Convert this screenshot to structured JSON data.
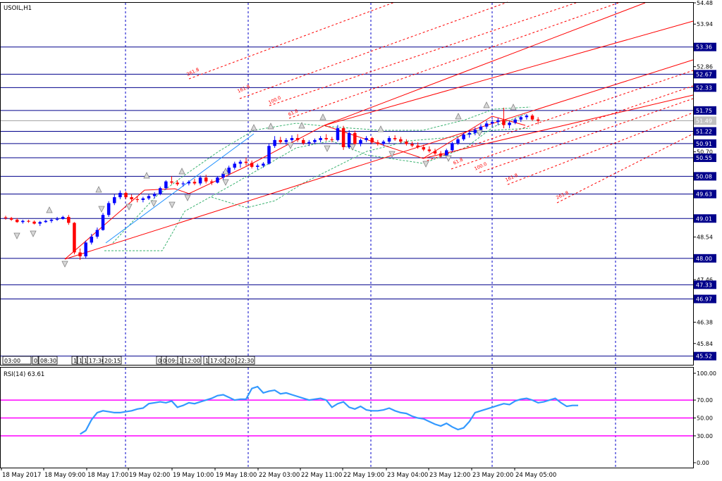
{
  "app": {
    "symbol_label": "USOIL,H1",
    "rsi_label": "RSI(14) 63.61"
  },
  "colors": {
    "background": "#ffffff",
    "frame": "#000000",
    "grid_vertical": "#0000c8",
    "level_line": "#00008b",
    "bull_candle": "#0000ff",
    "bear_candle": "#ff0000",
    "neutral_candle": "#00a000",
    "trend_red": "#ff0000",
    "trend_blue": "#1e90ff",
    "envelope_green": "#3cb371",
    "fractal": "#808080",
    "rsi_line": "#3399ff",
    "rsi_levels": "#ff00ff",
    "price_tag_bg": "#00008b",
    "current_price_bg": "#c0c0c0"
  },
  "time_labels": [
    "18 May 2017",
    "18 May 09:00",
    "18 May 17:00",
    "19 May 02:00",
    "19 May 10:00",
    "19 May 18:00",
    "22 May 03:00",
    "22 May 11:00",
    "22 May 19:00",
    "23 May 04:00",
    "23 May 12:00",
    "23 May 20:00",
    "24 May 05:00"
  ],
  "price_axis": {
    "ticks": [
      "54.48",
      "53.94",
      "52.86",
      "52.33",
      "51.75",
      "50.70",
      "48.54",
      "47.46",
      "46.38",
      "45.84"
    ],
    "level_tags": [
      "53.36",
      "52.67",
      "52.33",
      "51.75",
      "51.22",
      "50.91",
      "50.55",
      "50.08",
      "49.63",
      "49.01",
      "48.00",
      "47.33",
      "46.97",
      "45.52"
    ],
    "current_price": "51.49"
  },
  "rsi_axis": {
    "ticks": [
      "100.00",
      "70.00",
      "50.00",
      "30.00",
      "0.00"
    ]
  },
  "fib_labels": {
    "upper": [
      "261.8",
      "161.8",
      "100.0",
      "61.8"
    ],
    "lower": [
      "61.8",
      "100.0",
      "161.8",
      "261.8"
    ]
  },
  "session_markers": {
    "group1": [
      "03:00",
      "0",
      "08:30"
    ],
    "group2": [
      "1",
      "1",
      "1",
      "17:30",
      "20:15"
    ],
    "group3": [
      "0",
      "0",
      "09:",
      "1",
      "12:00"
    ],
    "group4": [
      "1",
      "17:00",
      "20:",
      "22:30"
    ]
  },
  "chart_data": {
    "type": "candlestick",
    "symbol": "USOIL",
    "timeframe": "H1",
    "price_range": [
      45.3,
      54.48
    ],
    "rsi_range": [
      0,
      100
    ],
    "rsi_period": 14,
    "rsi_last": 63.61,
    "rsi_levels": [
      70,
      50,
      30
    ],
    "horizontal_levels": [
      53.36,
      52.67,
      52.33,
      51.75,
      51.49,
      51.22,
      50.91,
      50.55,
      50.08,
      49.63,
      49.01,
      48.0,
      47.33,
      46.97,
      45.52
    ],
    "candles_ohlc": [
      [
        49.04,
        49.08,
        48.98,
        49.02
      ],
      [
        49.02,
        49.05,
        48.95,
        48.98
      ],
      [
        48.98,
        49.02,
        48.9,
        48.92
      ],
      [
        48.92,
        48.98,
        48.88,
        48.95
      ],
      [
        48.95,
        48.98,
        48.9,
        48.93
      ],
      [
        48.93,
        48.96,
        48.86,
        48.88
      ],
      [
        48.88,
        48.95,
        48.82,
        48.92
      ],
      [
        48.92,
        48.98,
        48.9,
        48.95
      ],
      [
        48.95,
        49.02,
        48.9,
        48.98
      ],
      [
        48.98,
        49.05,
        48.95,
        49.0
      ],
      [
        49.0,
        49.08,
        48.98,
        49.05
      ],
      [
        49.05,
        49.1,
        48.85,
        48.9
      ],
      [
        48.9,
        48.92,
        48.1,
        48.15
      ],
      [
        48.15,
        48.25,
        47.96,
        48.05
      ],
      [
        48.05,
        48.45,
        48.0,
        48.4
      ],
      [
        48.4,
        48.62,
        48.35,
        48.55
      ],
      [
        48.55,
        48.78,
        48.5,
        48.72
      ],
      [
        48.72,
        49.15,
        48.7,
        49.1
      ],
      [
        49.1,
        49.45,
        49.05,
        49.4
      ],
      [
        49.4,
        49.62,
        49.35,
        49.55
      ],
      [
        49.55,
        49.72,
        49.5,
        49.66
      ],
      [
        49.66,
        49.7,
        49.5,
        49.55
      ],
      [
        49.55,
        49.62,
        49.45,
        49.5
      ],
      [
        49.5,
        49.58,
        49.42,
        49.48
      ],
      [
        49.48,
        49.56,
        49.42,
        49.52
      ],
      [
        49.52,
        49.62,
        49.48,
        49.58
      ],
      [
        49.58,
        49.68,
        49.52,
        49.63
      ],
      [
        49.63,
        49.82,
        49.6,
        49.78
      ],
      [
        49.78,
        49.98,
        49.74,
        49.95
      ],
      [
        49.95,
        50.08,
        49.88,
        49.92
      ],
      [
        49.92,
        49.98,
        49.84,
        49.88
      ],
      [
        49.88,
        49.95,
        49.82,
        49.9
      ],
      [
        49.9,
        49.98,
        49.85,
        49.94
      ],
      [
        49.94,
        50.02,
        49.86,
        49.9
      ],
      [
        49.9,
        50.1,
        49.85,
        50.05
      ],
      [
        50.05,
        50.12,
        49.9,
        49.95
      ],
      [
        49.95,
        50.0,
        49.86,
        49.92
      ],
      [
        49.92,
        50.08,
        49.9,
        50.05
      ],
      [
        50.05,
        50.2,
        50.0,
        50.15
      ],
      [
        50.15,
        50.35,
        50.1,
        50.3
      ],
      [
        50.3,
        50.45,
        50.25,
        50.4
      ],
      [
        50.4,
        50.5,
        50.3,
        50.45
      ],
      [
        50.45,
        50.55,
        50.35,
        50.42
      ],
      [
        50.42,
        50.48,
        50.28,
        50.32
      ],
      [
        50.32,
        50.4,
        50.25,
        50.35
      ],
      [
        50.35,
        50.44,
        50.3,
        50.4
      ],
      [
        50.4,
        50.9,
        50.38,
        50.85
      ],
      [
        50.85,
        51.1,
        50.8,
        51.0
      ],
      [
        51.0,
        51.08,
        50.9,
        50.95
      ],
      [
        50.95,
        51.05,
        50.88,
        51.0
      ],
      [
        51.0,
        51.12,
        50.95,
        51.05
      ],
      [
        51.05,
        51.15,
        50.95,
        51.0
      ],
      [
        51.0,
        51.05,
        50.88,
        50.92
      ],
      [
        50.92,
        51.0,
        50.85,
        50.95
      ],
      [
        50.95,
        51.04,
        50.9,
        51.0
      ],
      [
        51.0,
        51.1,
        50.94,
        51.05
      ],
      [
        51.05,
        51.15,
        50.98,
        51.02
      ],
      [
        51.02,
        51.08,
        50.95,
        51.0
      ],
      [
        51.0,
        51.38,
        50.96,
        51.3
      ],
      [
        51.3,
        51.36,
        50.75,
        50.82
      ],
      [
        50.82,
        51.25,
        50.78,
        51.18
      ],
      [
        51.18,
        51.24,
        50.85,
        50.9
      ],
      [
        50.9,
        51.04,
        50.84,
        51.0
      ],
      [
        51.0,
        51.1,
        50.95,
        51.05
      ],
      [
        51.05,
        51.08,
        50.9,
        50.94
      ],
      [
        50.94,
        51.0,
        50.86,
        50.9
      ],
      [
        50.9,
        51.0,
        50.85,
        50.96
      ],
      [
        50.96,
        51.1,
        50.92,
        51.05
      ],
      [
        51.05,
        51.12,
        50.98,
        51.02
      ],
      [
        51.02,
        51.08,
        50.92,
        50.96
      ],
      [
        50.96,
        51.02,
        50.86,
        50.9
      ],
      [
        50.9,
        50.96,
        50.82,
        50.86
      ],
      [
        50.86,
        50.94,
        50.78,
        50.82
      ],
      [
        50.82,
        50.88,
        50.72,
        50.76
      ],
      [
        50.76,
        50.84,
        50.68,
        50.72
      ],
      [
        50.72,
        50.78,
        50.62,
        50.66
      ],
      [
        50.66,
        50.72,
        50.55,
        50.6
      ],
      [
        50.6,
        50.78,
        50.56,
        50.74
      ],
      [
        50.74,
        50.96,
        50.7,
        50.92
      ],
      [
        50.92,
        51.06,
        50.88,
        51.02
      ],
      [
        51.02,
        51.18,
        50.98,
        51.14
      ],
      [
        51.14,
        51.24,
        51.06,
        51.18
      ],
      [
        51.18,
        51.32,
        51.12,
        51.26
      ],
      [
        51.26,
        51.4,
        51.2,
        51.34
      ],
      [
        51.34,
        51.48,
        51.28,
        51.42
      ],
      [
        51.42,
        51.52,
        51.34,
        51.46
      ],
      [
        51.46,
        51.56,
        51.38,
        51.5
      ],
      [
        51.5,
        51.82,
        51.3,
        51.38
      ],
      [
        51.38,
        51.48,
        51.3,
        51.44
      ],
      [
        51.44,
        51.56,
        51.4,
        51.52
      ],
      [
        51.52,
        51.62,
        51.46,
        51.58
      ],
      [
        51.58,
        51.66,
        51.52,
        51.62
      ],
      [
        51.62,
        51.66,
        51.48,
        51.52
      ],
      [
        51.52,
        51.58,
        51.4,
        51.49
      ]
    ],
    "rsi_values": [
      32,
      36,
      48,
      56,
      58,
      57,
      56,
      56,
      57,
      58,
      60,
      61,
      66,
      67,
      68,
      67,
      69,
      62,
      64,
      67,
      66,
      68,
      70,
      72,
      75,
      76,
      73,
      70,
      71,
      71,
      83,
      85,
      78,
      80,
      81,
      77,
      78,
      76,
      74,
      72,
      70,
      71,
      72,
      70,
      62,
      66,
      68,
      62,
      60,
      63,
      59,
      58,
      58,
      59,
      61,
      58,
      56,
      55,
      52,
      50,
      49,
      46,
      43,
      41,
      44,
      40,
      37,
      39,
      46,
      56,
      58,
      60,
      62,
      64,
      66,
      65,
      69,
      71,
      72,
      70,
      67,
      68,
      70,
      72,
      67,
      63,
      64,
      64
    ]
  }
}
